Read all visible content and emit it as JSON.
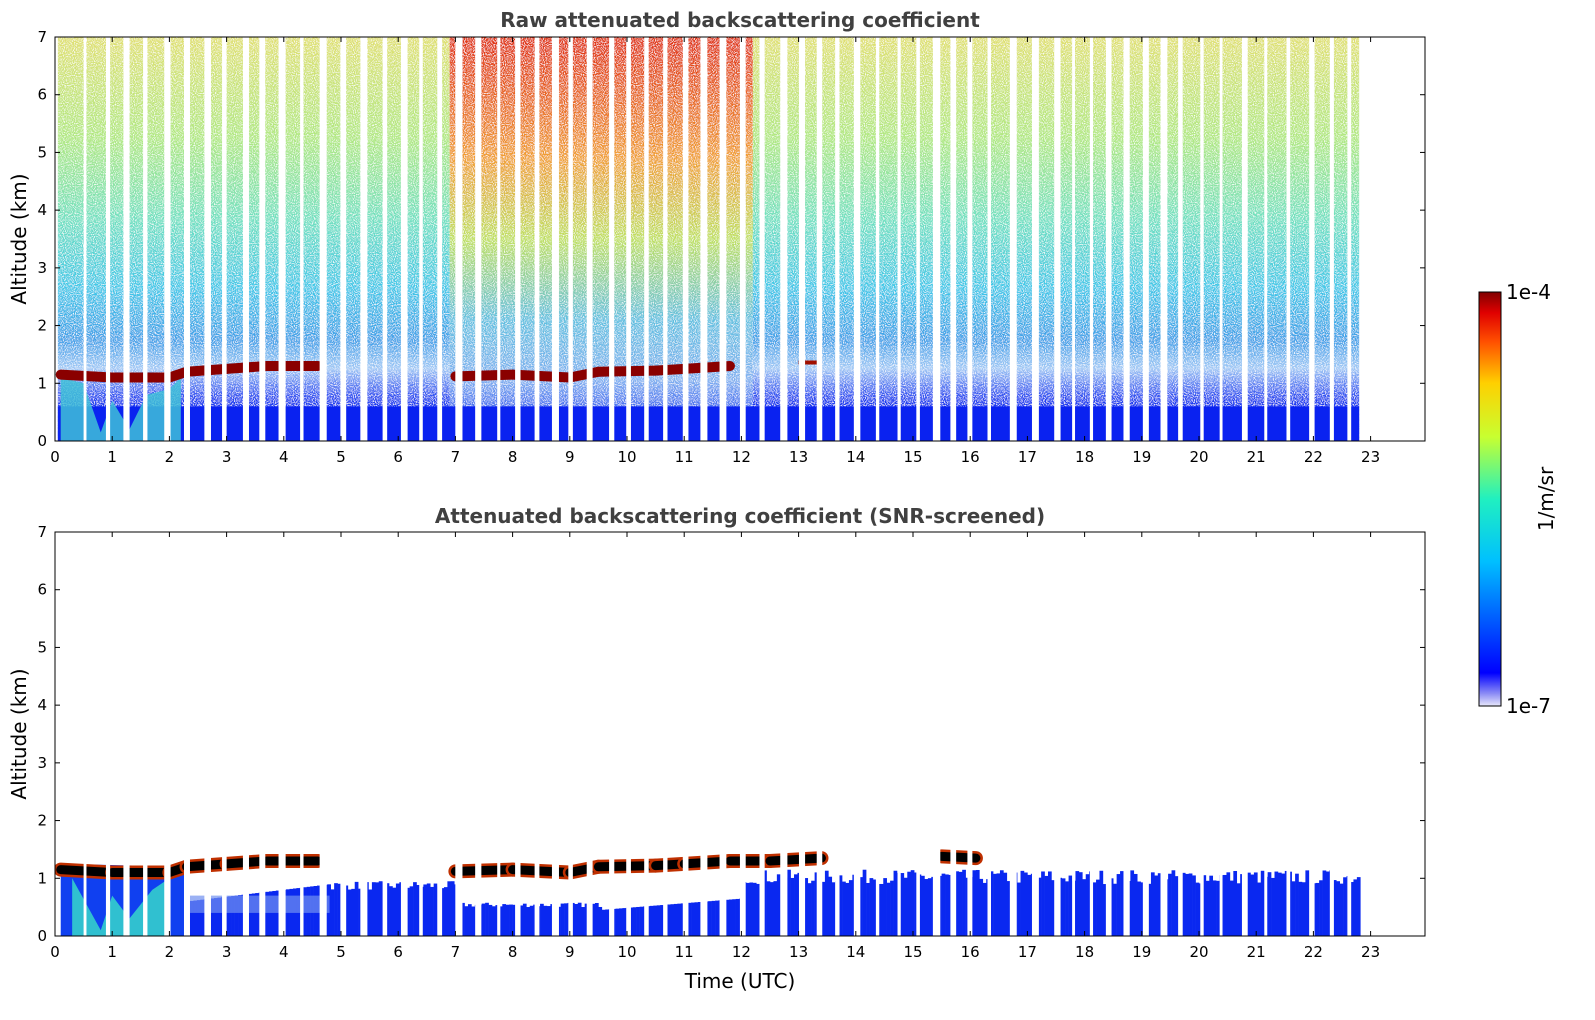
{
  "chart_data": [
    {
      "type": "heatmap",
      "title": "Raw attenuated backscattering coefficient",
      "xlabel": "",
      "ylabel": "Altitude (km)",
      "xlim": [
        0,
        24
      ],
      "ylim": [
        0,
        7
      ],
      "x_ticks": [
        "0",
        "1",
        "2",
        "3",
        "4",
        "5",
        "6",
        "7",
        "8",
        "9",
        "10",
        "11",
        "12",
        "13",
        "14",
        "15",
        "16",
        "17",
        "18",
        "19",
        "20",
        "21",
        "22",
        "23"
      ],
      "y_ticks": [
        "0",
        "1",
        "2",
        "3",
        "4",
        "5",
        "6",
        "7"
      ],
      "data_end_time": 22.8,
      "cloud_layer": [
        [
          0.1,
          1.15
        ],
        [
          1.0,
          1.1
        ],
        [
          2.0,
          1.1
        ],
        [
          2.3,
          1.2
        ],
        [
          3.0,
          1.25
        ],
        [
          3.7,
          1.3
        ],
        [
          4.6,
          1.3
        ],
        [
          7.0,
          1.12
        ],
        [
          8.0,
          1.15
        ],
        [
          9.0,
          1.1
        ],
        [
          9.5,
          1.2
        ],
        [
          10.5,
          1.22
        ],
        [
          11.0,
          1.25
        ],
        [
          11.8,
          1.3
        ]
      ],
      "noise_floor_altitude": 0.6
    },
    {
      "type": "heatmap",
      "title": "Attenuated backscattering coefficient (SNR-screened)",
      "xlabel": "Time (UTC)",
      "ylabel": "Altitude (km)",
      "xlim": [
        0,
        24
      ],
      "ylim": [
        0,
        7
      ],
      "x_ticks": [
        "0",
        "1",
        "2",
        "3",
        "4",
        "5",
        "6",
        "7",
        "8",
        "9",
        "10",
        "11",
        "12",
        "13",
        "14",
        "15",
        "16",
        "17",
        "18",
        "19",
        "20",
        "21",
        "22",
        "23"
      ],
      "y_ticks": [
        "0",
        "1",
        "2",
        "3",
        "4",
        "5",
        "6",
        "7"
      ],
      "data_end_time": 22.8,
      "cloud_layer": [
        [
          0.1,
          1.15
        ],
        [
          1.0,
          1.1
        ],
        [
          2.0,
          1.1
        ],
        [
          2.3,
          1.2
        ],
        [
          3.0,
          1.25
        ],
        [
          3.7,
          1.3
        ],
        [
          4.6,
          1.3
        ],
        [
          7.0,
          1.12
        ],
        [
          8.0,
          1.15
        ],
        [
          9.0,
          1.1
        ],
        [
          9.5,
          1.2
        ],
        [
          10.5,
          1.22
        ],
        [
          11.0,
          1.25
        ],
        [
          11.8,
          1.3
        ],
        [
          12.5,
          1.3
        ],
        [
          13.4,
          1.35
        ],
        [
          15.5,
          1.38
        ],
        [
          16.1,
          1.35
        ]
      ]
    }
  ],
  "colorbar": {
    "label": "1/m/sr",
    "max_label": "1e-4",
    "min_label": "1e-7",
    "scale": "log",
    "colormap": "jet"
  }
}
